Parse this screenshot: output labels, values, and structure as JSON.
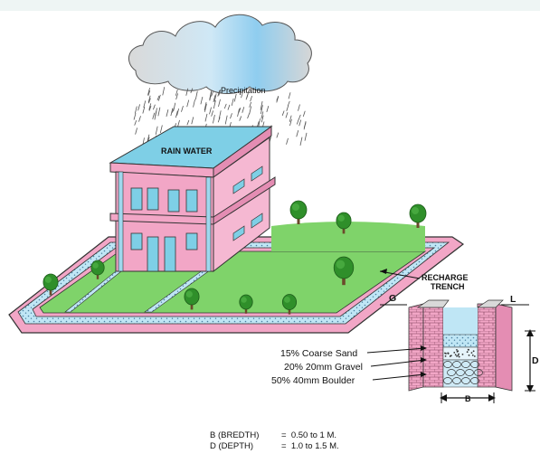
{
  "labels": {
    "precipitation": "Precipitation",
    "rain_water": "RAIN WATER",
    "recharge_line1": "RECHARGE",
    "recharge_line2": "TRENCH",
    "ground_left": "G",
    "ground_right": "L",
    "depth_letter": "D",
    "breadth_letter": "B"
  },
  "layers": [
    "15% Coarse Sand",
    "20% 20mm Gravel",
    "50% 40mm Boulder"
  ],
  "dimensions": {
    "breadth_key": "B (BREDTH)",
    "breadth_value": "=  0.50 to 1 M.",
    "depth_key": "D (DEPTH)",
    "depth_value": "=  1.0 to 1.5 M."
  },
  "colors": {
    "building_pink": "#f2a6c6",
    "window_blue": "#7ecfe6",
    "lawn_green": "#7fd36a",
    "trench_blue": "#bfe6f5",
    "tree_green": "#2f8f2a",
    "cloud_gray": "#c9c9c9",
    "rain_blue": "#7fc4e8"
  }
}
